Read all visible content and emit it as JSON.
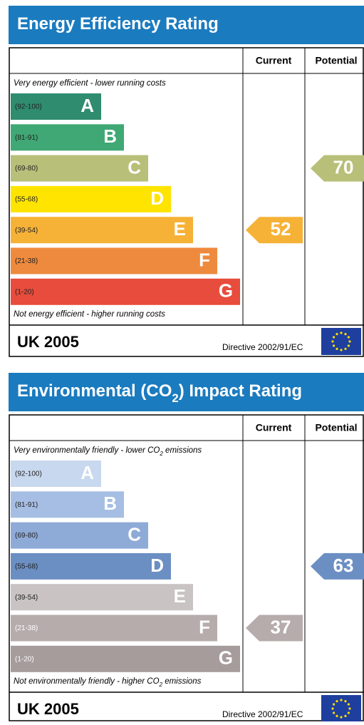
{
  "sections": [
    {
      "title": [
        "Energy Efficiency Rating"
      ],
      "columns": [
        "Current",
        "Potential"
      ],
      "top_note": [
        "Very energy efficient - lower running costs"
      ],
      "bands": [
        {
          "range": "(92-100)",
          "letter": "A",
          "color": "#2f8c6e"
        },
        {
          "range": "(81-91)",
          "letter": "B",
          "color": "#3fa874"
        },
        {
          "range": "(69-80)",
          "letter": "C",
          "color": "#b8bf78"
        },
        {
          "range": "(55-68)",
          "letter": "D",
          "color": "#ffe400"
        },
        {
          "range": "(39-54)",
          "letter": "E",
          "color": "#f6b236"
        },
        {
          "range": "(21-38)",
          "letter": "F",
          "color": "#ee8a3e"
        },
        {
          "range": "(1-20)",
          "letter": "G",
          "color": "#e84c3c"
        }
      ],
      "bottom_note": [
        "Not energy efficient - higher running costs"
      ],
      "current": 52,
      "potential": 70,
      "footer": "UK 2005",
      "directive": "Directive 2002/91/EC"
    },
    {
      "title": [
        "Environmental (CO",
        "2",
        ") Impact Rating"
      ],
      "columns": [
        "Current",
        "Potential"
      ],
      "top_note": [
        "Very environmentally friendly - lower CO",
        "2",
        " emissions"
      ],
      "bands": [
        {
          "range": "(92-100)",
          "letter": "A",
          "color": "#c8d8ee"
        },
        {
          "range": "(81-91)",
          "letter": "B",
          "color": "#a6bee3"
        },
        {
          "range": "(69-80)",
          "letter": "C",
          "color": "#8eaad7"
        },
        {
          "range": "(55-68)",
          "letter": "D",
          "color": "#6b8fc3"
        },
        {
          "range": "(39-54)",
          "letter": "E",
          "color": "#c9c3c3"
        },
        {
          "range": "(21-38)",
          "letter": "F",
          "color": "#b6acac"
        },
        {
          "range": "(1-20)",
          "letter": "G",
          "color": "#a69c9c"
        }
      ],
      "bottom_note": [
        "Not environmentally friendly - higher CO",
        "2",
        " emissions"
      ],
      "current": 37,
      "potential": 63,
      "footer": "UK 2005",
      "directive": "Directive 2002/91/EC"
    }
  ]
}
